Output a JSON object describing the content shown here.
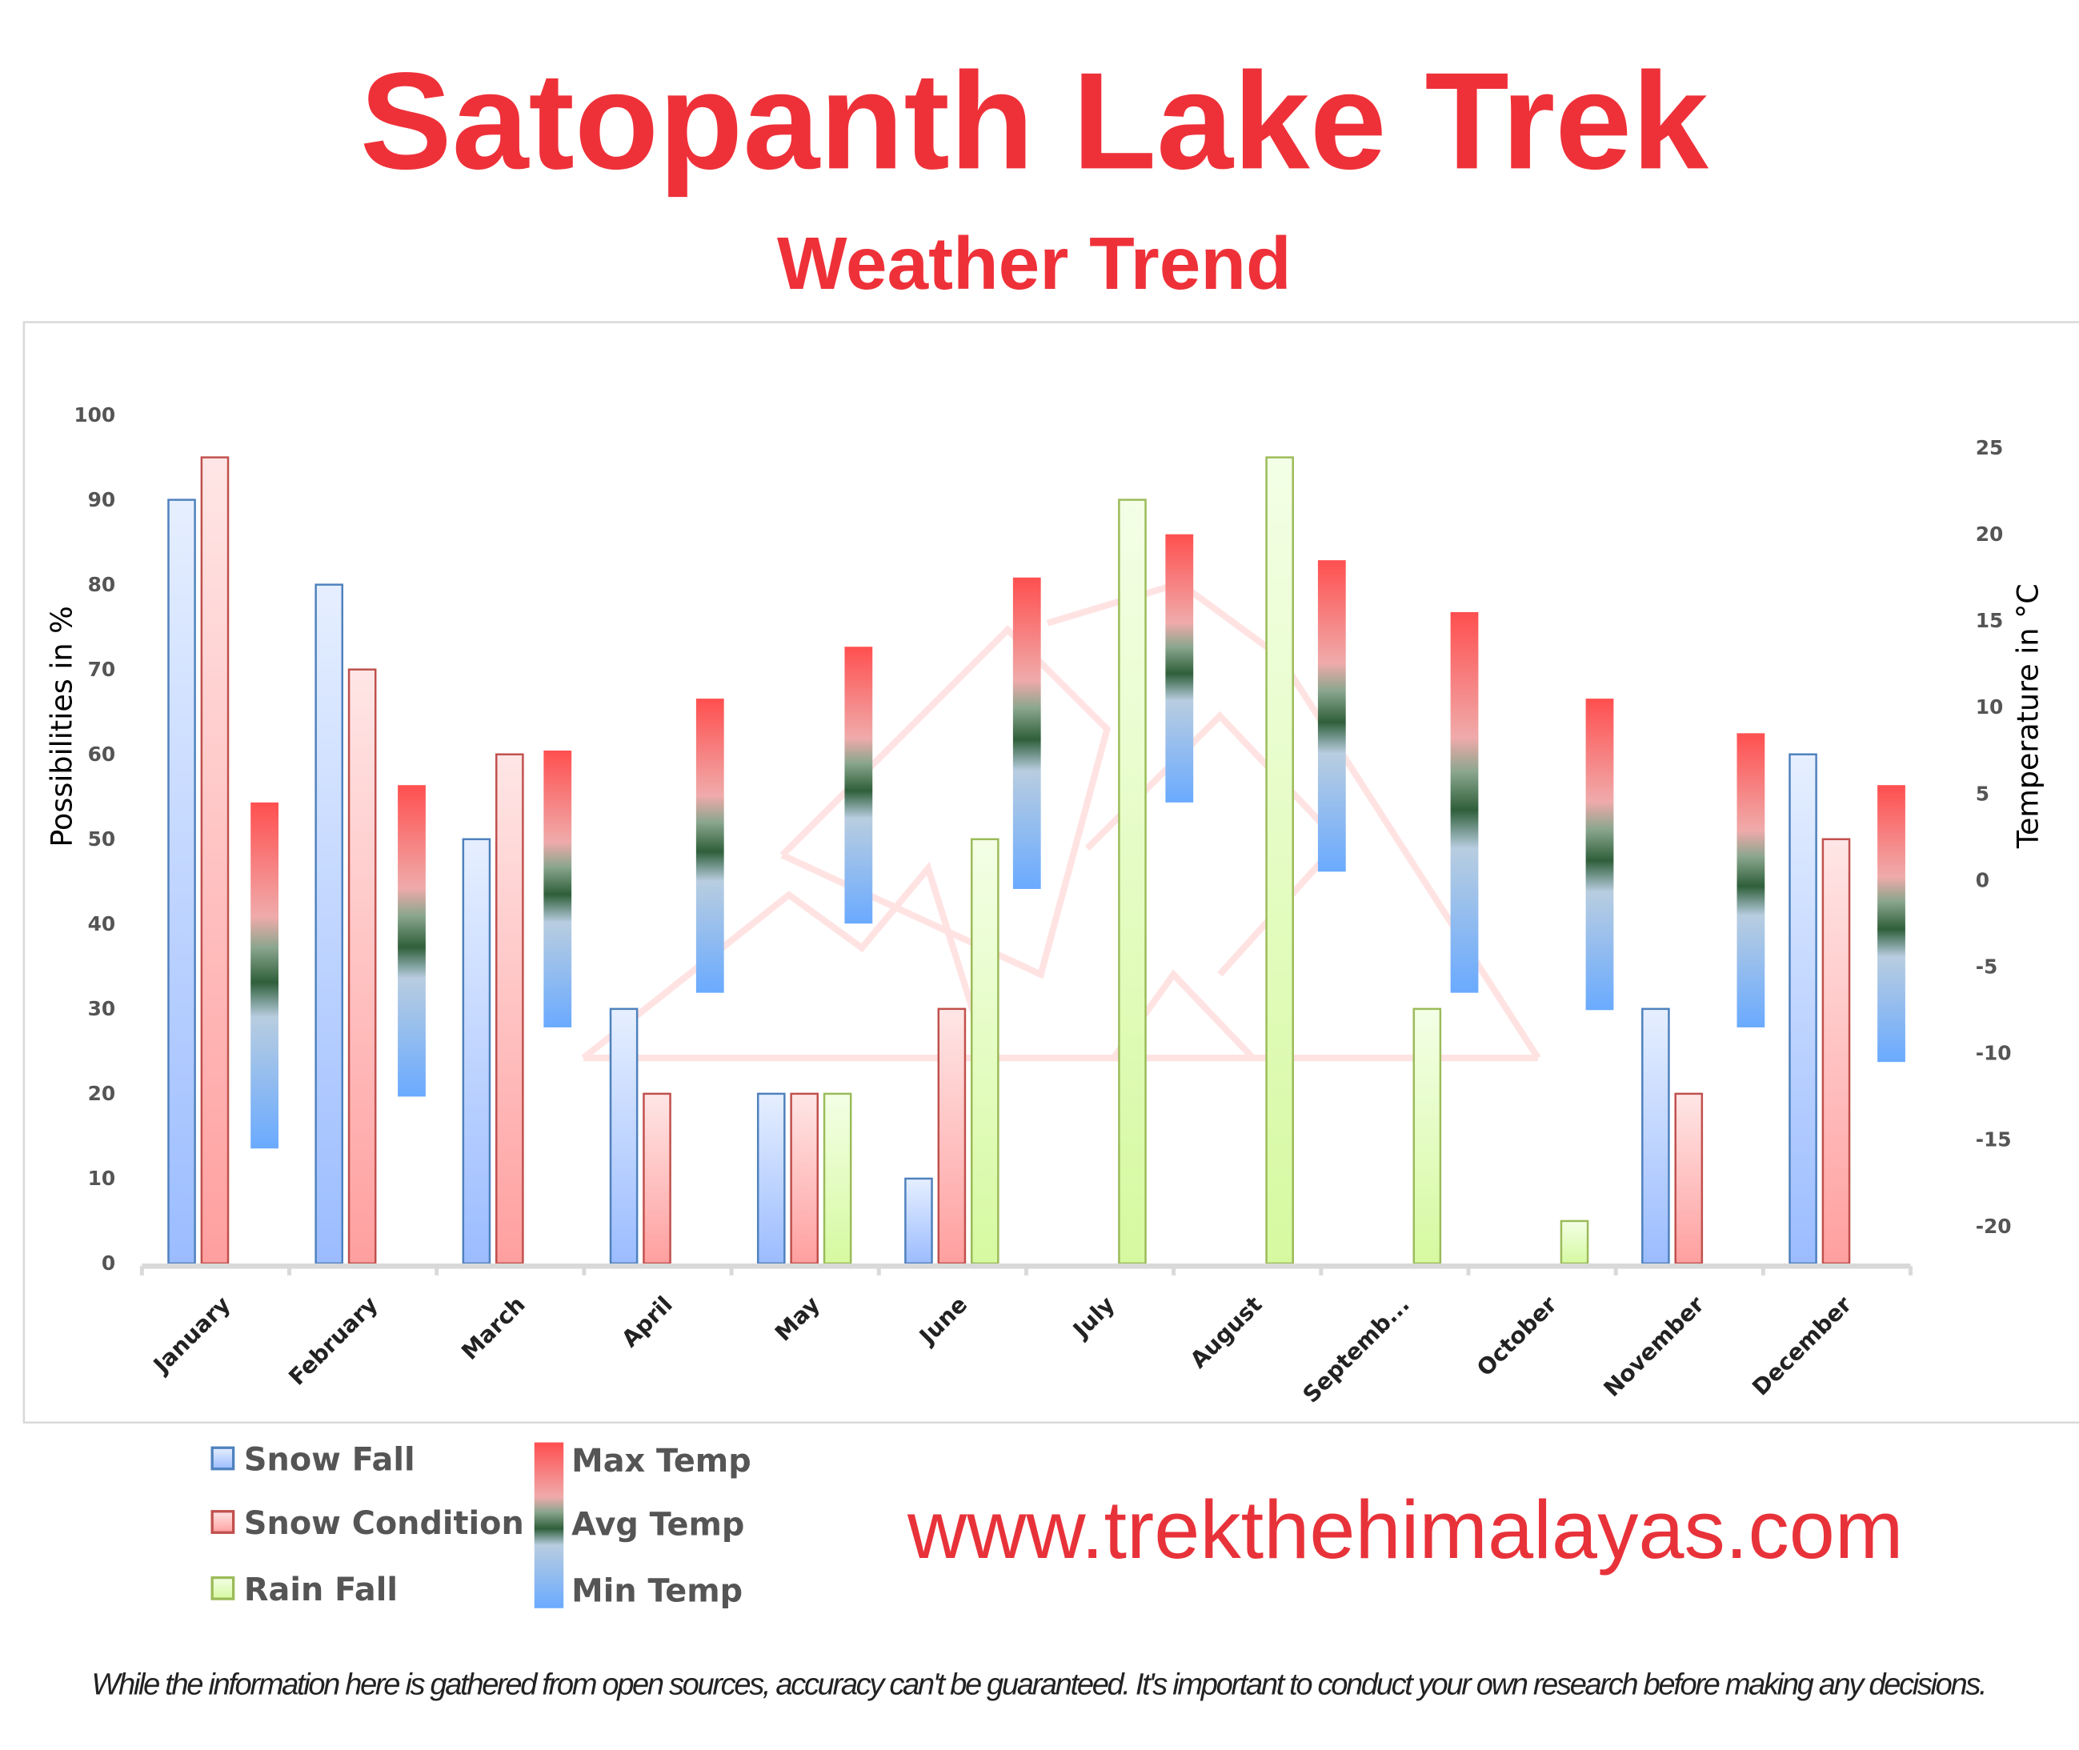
{
  "title": "Satopanth Lake Trek",
  "subtitle": "Weather Trend",
  "website": "www.trekthehimalayas.com",
  "disclaimer": "While the information here is gathered from open sources, accuracy can't be guaranteed. It's important to conduct your own research before making any decisions.",
  "chart_data": {
    "type": "bar",
    "categories": [
      "January",
      "February",
      "March",
      "April",
      "May",
      "June",
      "July",
      "August",
      "Septemb...",
      "October",
      "November",
      "December"
    ],
    "ylabel": "Possibilities in %",
    "y2label": "Temperature in °C",
    "ylim": [
      0,
      100
    ],
    "yticks": [
      0,
      10,
      20,
      30,
      40,
      50,
      60,
      70,
      80,
      90,
      100
    ],
    "y2lim": [
      -20,
      25
    ],
    "y2ticks": [
      -20,
      -15,
      -10,
      -5,
      0,
      5,
      10,
      15,
      20,
      25
    ],
    "grid": false,
    "legend_position": "bottom-left",
    "series": [
      {
        "name": "Snow Fall",
        "axis": "left",
        "color": "#4f81bd",
        "values": [
          90,
          80,
          50,
          30,
          20,
          10,
          0,
          0,
          0,
          0,
          30,
          60
        ]
      },
      {
        "name": "Snow Condition",
        "axis": "left",
        "color": "#c0504d",
        "values": [
          95,
          70,
          60,
          20,
          20,
          30,
          0,
          0,
          0,
          0,
          20,
          50
        ]
      },
      {
        "name": "Rain Fall",
        "axis": "left",
        "color": "#9bbb59",
        "values": [
          0,
          0,
          0,
          0,
          20,
          50,
          90,
          95,
          30,
          5,
          0,
          0
        ]
      },
      {
        "name": "Max Temp",
        "axis": "right",
        "color": "#ff5050",
        "values": [
          4.5,
          5.5,
          7.5,
          10.5,
          13.5,
          17.5,
          20,
          18.5,
          15.5,
          10.5,
          8.5,
          5.5
        ]
      },
      {
        "name": "Avg Temp",
        "axis": "right",
        "color": "#2f5f3a",
        "values": [
          -5.5,
          -3.5,
          -0.5,
          2,
          5.5,
          8.5,
          12,
          9.5,
          4.5,
          1.5,
          0,
          -2.5
        ]
      },
      {
        "name": "Min Temp",
        "axis": "right",
        "color": "#6aaaff",
        "values": [
          -15.5,
          -12.5,
          -8.5,
          -6.5,
          -2.5,
          -0.5,
          4.5,
          0.5,
          -6.5,
          -7.5,
          -8.5,
          -10.5
        ]
      }
    ]
  }
}
